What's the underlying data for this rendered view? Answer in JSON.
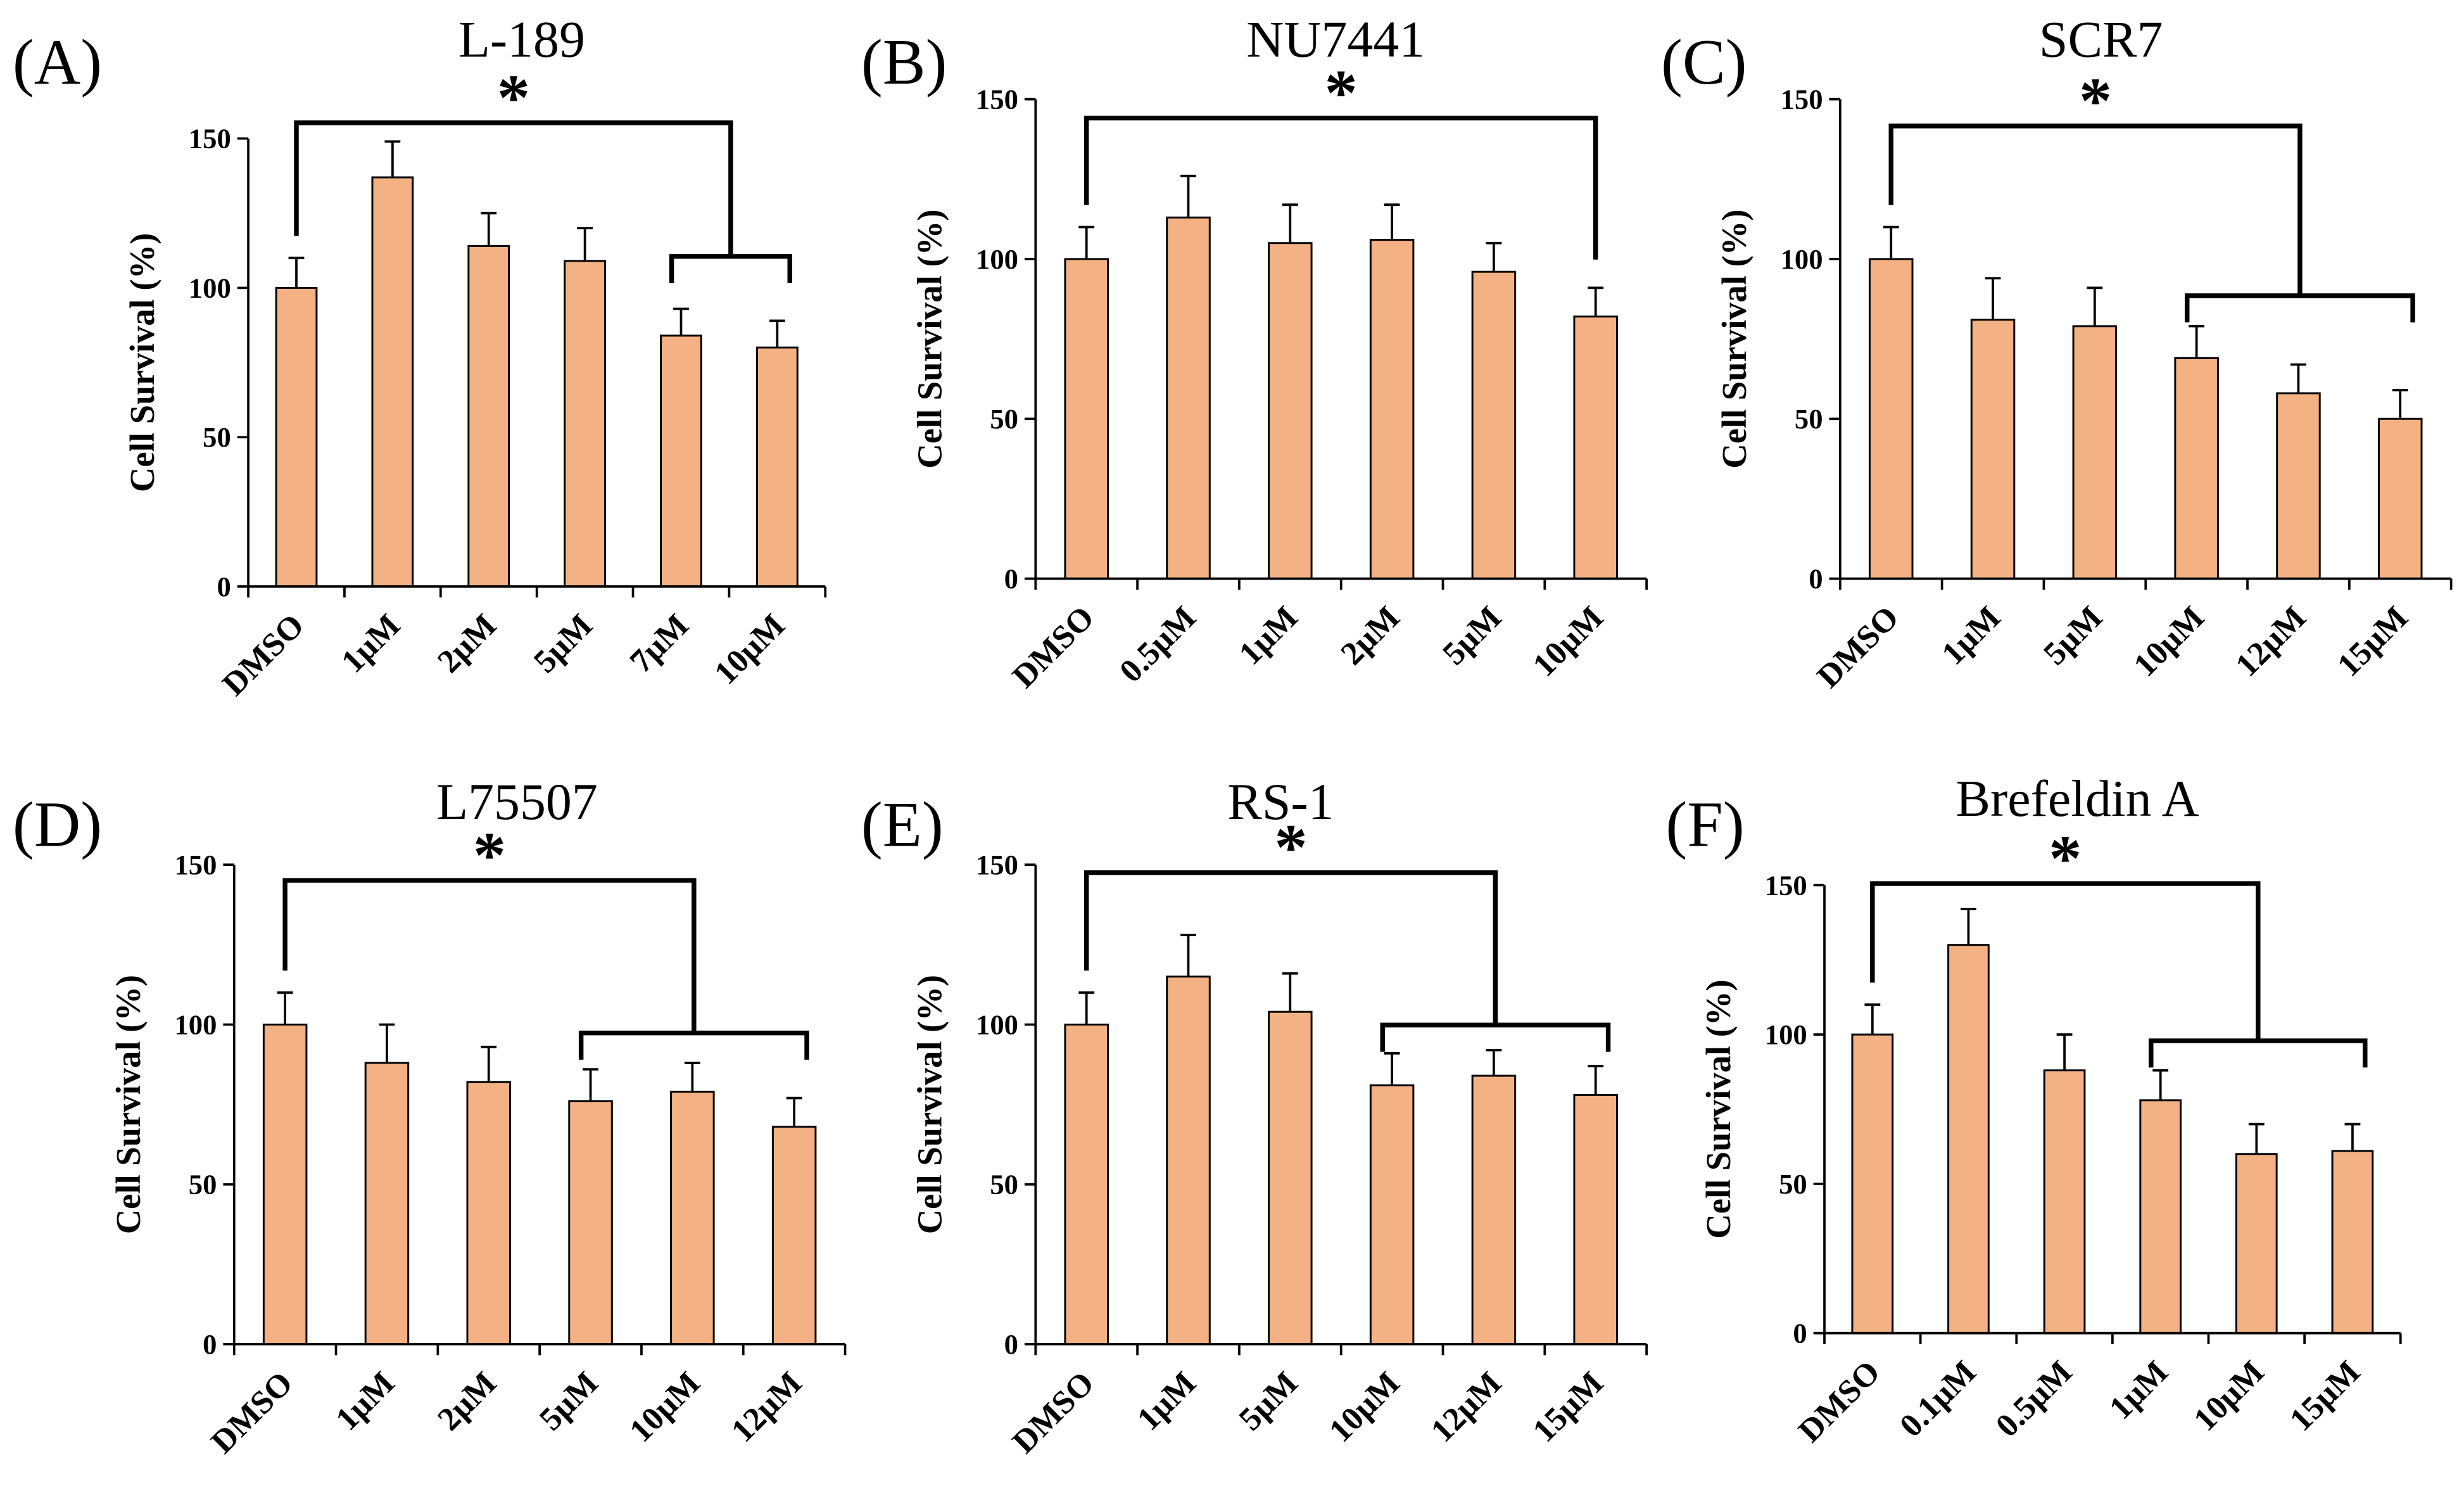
{
  "colors": {
    "bar_fill": "#F4B183",
    "ink": "#000000",
    "background": "#FFFFFF"
  },
  "chart_data": [
    {
      "panel_label": "(A)",
      "type": "bar",
      "title": "L-189",
      "ylabel": "Cell Survival (%)",
      "ylim": [
        0,
        150
      ],
      "y_ticks": [
        0,
        50,
        100,
        150
      ],
      "grid": false,
      "categories": [
        "DMSO",
        "1µM",
        "2µM",
        "5µM",
        "7µM",
        "10µM"
      ],
      "values": [
        100,
        137,
        114,
        109,
        84,
        80
      ],
      "errors": [
        10,
        12,
        11,
        11,
        9,
        9
      ],
      "significance": {
        "label": "*",
        "from_index": 0,
        "to_range": [
          4,
          5
        ]
      }
    },
    {
      "panel_label": "(B)",
      "type": "bar",
      "title": "NU7441",
      "ylabel": "Cell Survival (%)",
      "ylim": [
        0,
        150
      ],
      "y_ticks": [
        0,
        50,
        100,
        150
      ],
      "grid": false,
      "categories": [
        "DMSO",
        "0.5µM",
        "1µM",
        "2µM",
        "5µM",
        "10µM"
      ],
      "values": [
        100,
        113,
        105,
        106,
        96,
        82
      ],
      "errors": [
        10,
        13,
        12,
        11,
        9,
        9
      ],
      "significance": {
        "label": "*",
        "from_index": 0,
        "to_range": [
          5,
          5
        ]
      }
    },
    {
      "panel_label": "(C)",
      "type": "bar",
      "title": "SCR7",
      "ylabel": "Cell Survival (%)",
      "ylim": [
        0,
        150
      ],
      "y_ticks": [
        0,
        50,
        100,
        150
      ],
      "grid": false,
      "categories": [
        "DMSO",
        "1µM",
        "5µM",
        "10µM",
        "12µM",
        "15µM"
      ],
      "values": [
        100,
        81,
        79,
        69,
        58,
        50
      ],
      "errors": [
        10,
        13,
        12,
        10,
        9,
        9
      ],
      "significance": {
        "label": "*",
        "from_index": 0,
        "to_range": [
          3,
          5
        ]
      }
    },
    {
      "panel_label": "(D)",
      "type": "bar",
      "title": "L75507",
      "ylabel": "Cell Survival (%)",
      "ylim": [
        0,
        150
      ],
      "y_ticks": [
        0,
        50,
        100,
        150
      ],
      "grid": false,
      "categories": [
        "DMSO",
        "1µM",
        "2µM",
        "5µM",
        "10µM",
        "12µM"
      ],
      "values": [
        100,
        88,
        82,
        76,
        79,
        68
      ],
      "errors": [
        10,
        12,
        11,
        10,
        9,
        9
      ],
      "significance": {
        "label": "*",
        "from_index": 0,
        "to_range": [
          3,
          5
        ]
      }
    },
    {
      "panel_label": "(E)",
      "type": "bar",
      "title": "RS-1",
      "ylabel": "Cell Survival (%)",
      "ylim": [
        0,
        150
      ],
      "y_ticks": [
        0,
        50,
        100,
        150
      ],
      "grid": false,
      "categories": [
        "DMSO",
        "1µM",
        "5µM",
        "10µM",
        "12µM",
        "15µM"
      ],
      "values": [
        100,
        115,
        104,
        81,
        84,
        78
      ],
      "errors": [
        10,
        13,
        12,
        10,
        8,
        9
      ],
      "significance": {
        "label": "*",
        "from_index": 0,
        "to_range": [
          3,
          5
        ]
      }
    },
    {
      "panel_label": "(F)",
      "type": "bar",
      "title": "Brefeldin A",
      "ylabel": "Cell Survival (%)",
      "ylim": [
        0,
        150
      ],
      "y_ticks": [
        0,
        50,
        100,
        150
      ],
      "grid": false,
      "categories": [
        "DMSO",
        "0.1µM",
        "0.5µM",
        "1µM",
        "10µM",
        "15µM"
      ],
      "values": [
        100,
        130,
        88,
        78,
        60,
        61
      ],
      "errors": [
        10,
        12,
        12,
        10,
        10,
        9
      ],
      "significance": {
        "label": "*",
        "from_index": 0,
        "to_range": [
          3,
          5
        ]
      }
    }
  ]
}
